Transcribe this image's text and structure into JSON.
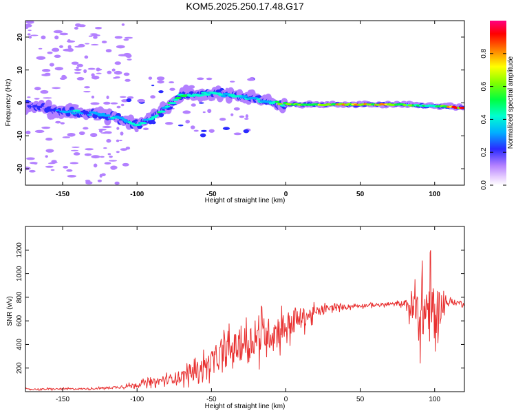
{
  "title": "KOM5.2025.250.17.48.G17",
  "chart_data": [
    {
      "type": "heatmap",
      "xlabel": "Height of straight line (km)",
      "ylabel": "Frequency (Hz)",
      "xlim": [
        -175,
        120
      ],
      "ylim": [
        -25,
        25
      ],
      "xticks": [
        -150,
        -100,
        -50,
        0,
        50,
        100
      ],
      "xtick_labels": [
        "-150",
        "-100",
        "-50",
        "0",
        "50",
        "100"
      ],
      "yticks": [
        -20,
        -10,
        0,
        10,
        20
      ],
      "ytick_labels": [
        "-20",
        "-10",
        "0",
        "10",
        "20"
      ],
      "colorbar": {
        "label": "Normalized spectral amplitude",
        "range": [
          0,
          1
        ],
        "ticks": [
          0.0,
          0.2,
          0.4,
          0.6,
          0.8
        ],
        "tick_labels": [
          "0.0",
          "0.2",
          "0.4",
          "0.6",
          "0.8"
        ]
      },
      "ridge": {
        "x": [
          -175,
          -150,
          -140,
          -125,
          -110,
          -100,
          -90,
          -80,
          -70,
          -60,
          -50,
          -40,
          -30,
          -20,
          -10,
          0,
          10,
          25,
          50,
          75,
          90,
          100,
          110,
          120
        ],
        "y": [
          -0.5,
          -2.5,
          -3.0,
          -3.5,
          -5.0,
          -6.5,
          -4.5,
          -1.5,
          2.5,
          2.5,
          3.0,
          2.5,
          2.0,
          1.5,
          0.0,
          -0.5,
          -0.5,
          -0.5,
          -0.5,
          -0.5,
          -0.8,
          -1.0,
          -1.2,
          -1.5
        ],
        "amplitude": [
          0.1,
          0.2,
          0.3,
          0.25,
          0.3,
          0.35,
          0.35,
          0.4,
          0.5,
          0.35,
          0.35,
          0.3,
          0.35,
          0.3,
          0.4,
          0.55,
          0.55,
          0.6,
          0.7,
          0.6,
          0.45,
          0.4,
          0.75,
          0.8
        ]
      }
    },
    {
      "type": "line",
      "xlabel": "Height of straight line (km)",
      "ylabel": "SNR (v/v)",
      "xlim": [
        -175,
        120
      ],
      "ylim": [
        0,
        1400
      ],
      "xticks": [
        -150,
        -100,
        -50,
        0,
        50,
        100
      ],
      "xtick_labels": [
        "-150",
        "-100",
        "-50",
        "0",
        "50",
        "100"
      ],
      "yticks": [
        200,
        400,
        600,
        800,
        1000,
        1200
      ],
      "ytick_labels": [
        "200",
        "400",
        "600",
        "800",
        "1000",
        "1200"
      ],
      "color": "#e83030",
      "envelope": {
        "x": [
          -175,
          -130,
          -110,
          -100,
          -80,
          -65,
          -50,
          -40,
          -30,
          -20,
          -10,
          0,
          10,
          20,
          30,
          50,
          70,
          80,
          85,
          90,
          95,
          100,
          105,
          110,
          120
        ],
        "mean": [
          20,
          25,
          40,
          60,
          100,
          150,
          250,
          330,
          400,
          450,
          500,
          560,
          620,
          670,
          710,
          730,
          740,
          750,
          700,
          650,
          700,
          650,
          740,
          760,
          750
        ],
        "noise": [
          10,
          10,
          20,
          30,
          60,
          100,
          150,
          200,
          230,
          250,
          220,
          200,
          150,
          80,
          40,
          25,
          20,
          40,
          300,
          350,
          450,
          500,
          150,
          40,
          30
        ]
      }
    }
  ]
}
